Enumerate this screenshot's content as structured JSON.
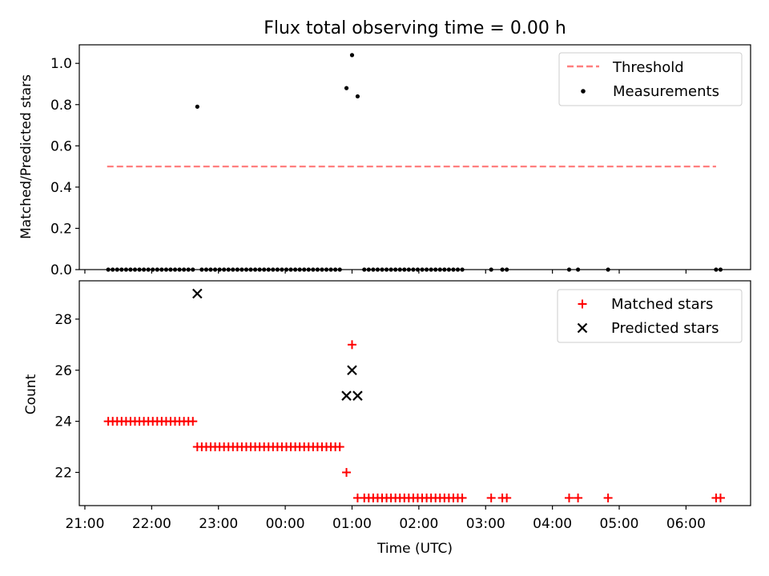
{
  "chart_data": [
    {
      "type": "scatter",
      "title": "Flux total observing time = 0.00 h",
      "xlabel": "",
      "ylabel": "Matched/Predicted stars",
      "xlim": [
        "20:55",
        "06:58"
      ],
      "ylim": [
        0,
        1.09
      ],
      "yticks": [
        "0.0",
        "0.2",
        "0.4",
        "0.6",
        "0.8",
        "1.0"
      ],
      "grid": false,
      "legend_position": "upper right",
      "threshold": {
        "name": "Threshold",
        "y": 0.5,
        "x_start": "21:20",
        "x_end": "06:27",
        "color": "#ff7f7f",
        "style": "dashed"
      },
      "series": [
        {
          "name": "Measurements",
          "color": "#000000",
          "marker": "dot",
          "points": [
            [
              "21:21",
              0
            ],
            [
              "21:25",
              0
            ],
            [
              "21:29",
              0
            ],
            [
              "21:33",
              0
            ],
            [
              "21:37",
              0
            ],
            [
              "21:41",
              0
            ],
            [
              "21:45",
              0
            ],
            [
              "21:49",
              0
            ],
            [
              "21:53",
              0
            ],
            [
              "21:57",
              0
            ],
            [
              "22:01",
              0
            ],
            [
              "22:05",
              0
            ],
            [
              "22:09",
              0
            ],
            [
              "22:13",
              0
            ],
            [
              "22:17",
              0
            ],
            [
              "22:21",
              0
            ],
            [
              "22:25",
              0
            ],
            [
              "22:29",
              0
            ],
            [
              "22:33",
              0
            ],
            [
              "22:37",
              0
            ],
            [
              "22:41",
              0.79
            ],
            [
              "22:45",
              0
            ],
            [
              "22:49",
              0
            ],
            [
              "22:53",
              0
            ],
            [
              "22:57",
              0
            ],
            [
              "23:01",
              0
            ],
            [
              "23:05",
              0
            ],
            [
              "23:09",
              0
            ],
            [
              "23:13",
              0
            ],
            [
              "23:17",
              0
            ],
            [
              "23:21",
              0
            ],
            [
              "23:25",
              0
            ],
            [
              "23:29",
              0
            ],
            [
              "23:33",
              0
            ],
            [
              "23:37",
              0
            ],
            [
              "23:41",
              0
            ],
            [
              "23:45",
              0
            ],
            [
              "23:49",
              0
            ],
            [
              "23:53",
              0
            ],
            [
              "23:57",
              0
            ],
            [
              "00:01",
              0
            ],
            [
              "00:05",
              0
            ],
            [
              "00:09",
              0
            ],
            [
              "00:13",
              0
            ],
            [
              "00:17",
              0
            ],
            [
              "00:21",
              0
            ],
            [
              "00:25",
              0
            ],
            [
              "00:29",
              0
            ],
            [
              "00:33",
              0
            ],
            [
              "00:37",
              0
            ],
            [
              "00:41",
              0
            ],
            [
              "00:45",
              0
            ],
            [
              "00:49",
              0
            ],
            [
              "00:55",
              0.88
            ],
            [
              "01:00",
              1.04
            ],
            [
              "01:05",
              0.84
            ],
            [
              "01:11",
              0
            ],
            [
              "01:15",
              0
            ],
            [
              "01:19",
              0
            ],
            [
              "01:23",
              0
            ],
            [
              "01:27",
              0
            ],
            [
              "01:31",
              0
            ],
            [
              "01:35",
              0
            ],
            [
              "01:39",
              0
            ],
            [
              "01:43",
              0
            ],
            [
              "01:47",
              0
            ],
            [
              "01:51",
              0
            ],
            [
              "01:55",
              0
            ],
            [
              "01:59",
              0
            ],
            [
              "02:03",
              0
            ],
            [
              "02:07",
              0
            ],
            [
              "02:11",
              0
            ],
            [
              "02:15",
              0
            ],
            [
              "02:19",
              0
            ],
            [
              "02:23",
              0
            ],
            [
              "02:27",
              0
            ],
            [
              "02:31",
              0
            ],
            [
              "02:35",
              0
            ],
            [
              "02:39",
              0
            ],
            [
              "03:05",
              0
            ],
            [
              "03:15",
              0
            ],
            [
              "03:19",
              0
            ],
            [
              "04:15",
              0
            ],
            [
              "04:23",
              0
            ],
            [
              "04:50",
              0
            ],
            [
              "06:27",
              0
            ],
            [
              "06:31",
              0
            ]
          ]
        }
      ]
    },
    {
      "type": "scatter",
      "title": "",
      "xlabel": "Time (UTC)",
      "ylabel": "Count",
      "xlim": [
        "20:55",
        "06:58"
      ],
      "ylim": [
        20.7,
        29.5
      ],
      "yticks": [
        "22",
        "24",
        "26",
        "28"
      ],
      "xticks": [
        "21:00",
        "22:00",
        "23:00",
        "00:00",
        "01:00",
        "02:00",
        "03:00",
        "04:00",
        "05:00",
        "06:00"
      ],
      "grid": false,
      "legend_position": "upper right",
      "series": [
        {
          "name": "Matched stars",
          "color": "#ff0000",
          "marker": "plus",
          "points": [
            [
              "21:21",
              24
            ],
            [
              "21:25",
              24
            ],
            [
              "21:29",
              24
            ],
            [
              "21:33",
              24
            ],
            [
              "21:37",
              24
            ],
            [
              "21:41",
              24
            ],
            [
              "21:45",
              24
            ],
            [
              "21:49",
              24
            ],
            [
              "21:53",
              24
            ],
            [
              "21:57",
              24
            ],
            [
              "22:01",
              24
            ],
            [
              "22:05",
              24
            ],
            [
              "22:09",
              24
            ],
            [
              "22:13",
              24
            ],
            [
              "22:17",
              24
            ],
            [
              "22:21",
              24
            ],
            [
              "22:25",
              24
            ],
            [
              "22:29",
              24
            ],
            [
              "22:33",
              24
            ],
            [
              "22:37",
              24
            ],
            [
              "22:41",
              23
            ],
            [
              "22:45",
              23
            ],
            [
              "22:49",
              23
            ],
            [
              "22:53",
              23
            ],
            [
              "22:57",
              23
            ],
            [
              "23:01",
              23
            ],
            [
              "23:05",
              23
            ],
            [
              "23:09",
              23
            ],
            [
              "23:13",
              23
            ],
            [
              "23:17",
              23
            ],
            [
              "23:21",
              23
            ],
            [
              "23:25",
              23
            ],
            [
              "23:29",
              23
            ],
            [
              "23:33",
              23
            ],
            [
              "23:37",
              23
            ],
            [
              "23:41",
              23
            ],
            [
              "23:45",
              23
            ],
            [
              "23:49",
              23
            ],
            [
              "23:53",
              23
            ],
            [
              "23:57",
              23
            ],
            [
              "00:01",
              23
            ],
            [
              "00:05",
              23
            ],
            [
              "00:09",
              23
            ],
            [
              "00:13",
              23
            ],
            [
              "00:17",
              23
            ],
            [
              "00:21",
              23
            ],
            [
              "00:25",
              23
            ],
            [
              "00:29",
              23
            ],
            [
              "00:33",
              23
            ],
            [
              "00:37",
              23
            ],
            [
              "00:41",
              23
            ],
            [
              "00:45",
              23
            ],
            [
              "00:49",
              23
            ],
            [
              "00:55",
              22
            ],
            [
              "01:00",
              27
            ],
            [
              "01:05",
              21
            ],
            [
              "01:11",
              21
            ],
            [
              "01:15",
              21
            ],
            [
              "01:19",
              21
            ],
            [
              "01:23",
              21
            ],
            [
              "01:27",
              21
            ],
            [
              "01:31",
              21
            ],
            [
              "01:35",
              21
            ],
            [
              "01:39",
              21
            ],
            [
              "01:43",
              21
            ],
            [
              "01:47",
              21
            ],
            [
              "01:51",
              21
            ],
            [
              "01:55",
              21
            ],
            [
              "01:59",
              21
            ],
            [
              "02:03",
              21
            ],
            [
              "02:07",
              21
            ],
            [
              "02:11",
              21
            ],
            [
              "02:15",
              21
            ],
            [
              "02:19",
              21
            ],
            [
              "02:23",
              21
            ],
            [
              "02:27",
              21
            ],
            [
              "02:31",
              21
            ],
            [
              "02:35",
              21
            ],
            [
              "02:39",
              21
            ],
            [
              "03:05",
              21
            ],
            [
              "03:15",
              21
            ],
            [
              "03:19",
              21
            ],
            [
              "04:15",
              21
            ],
            [
              "04:23",
              21
            ],
            [
              "04:50",
              21
            ],
            [
              "06:27",
              21
            ],
            [
              "06:31",
              21
            ]
          ]
        },
        {
          "name": "Predicted stars",
          "color": "#000000",
          "marker": "x",
          "points": [
            [
              "22:41",
              29
            ],
            [
              "00:55",
              25
            ],
            [
              "01:00",
              26
            ],
            [
              "01:05",
              25
            ]
          ]
        }
      ]
    }
  ]
}
